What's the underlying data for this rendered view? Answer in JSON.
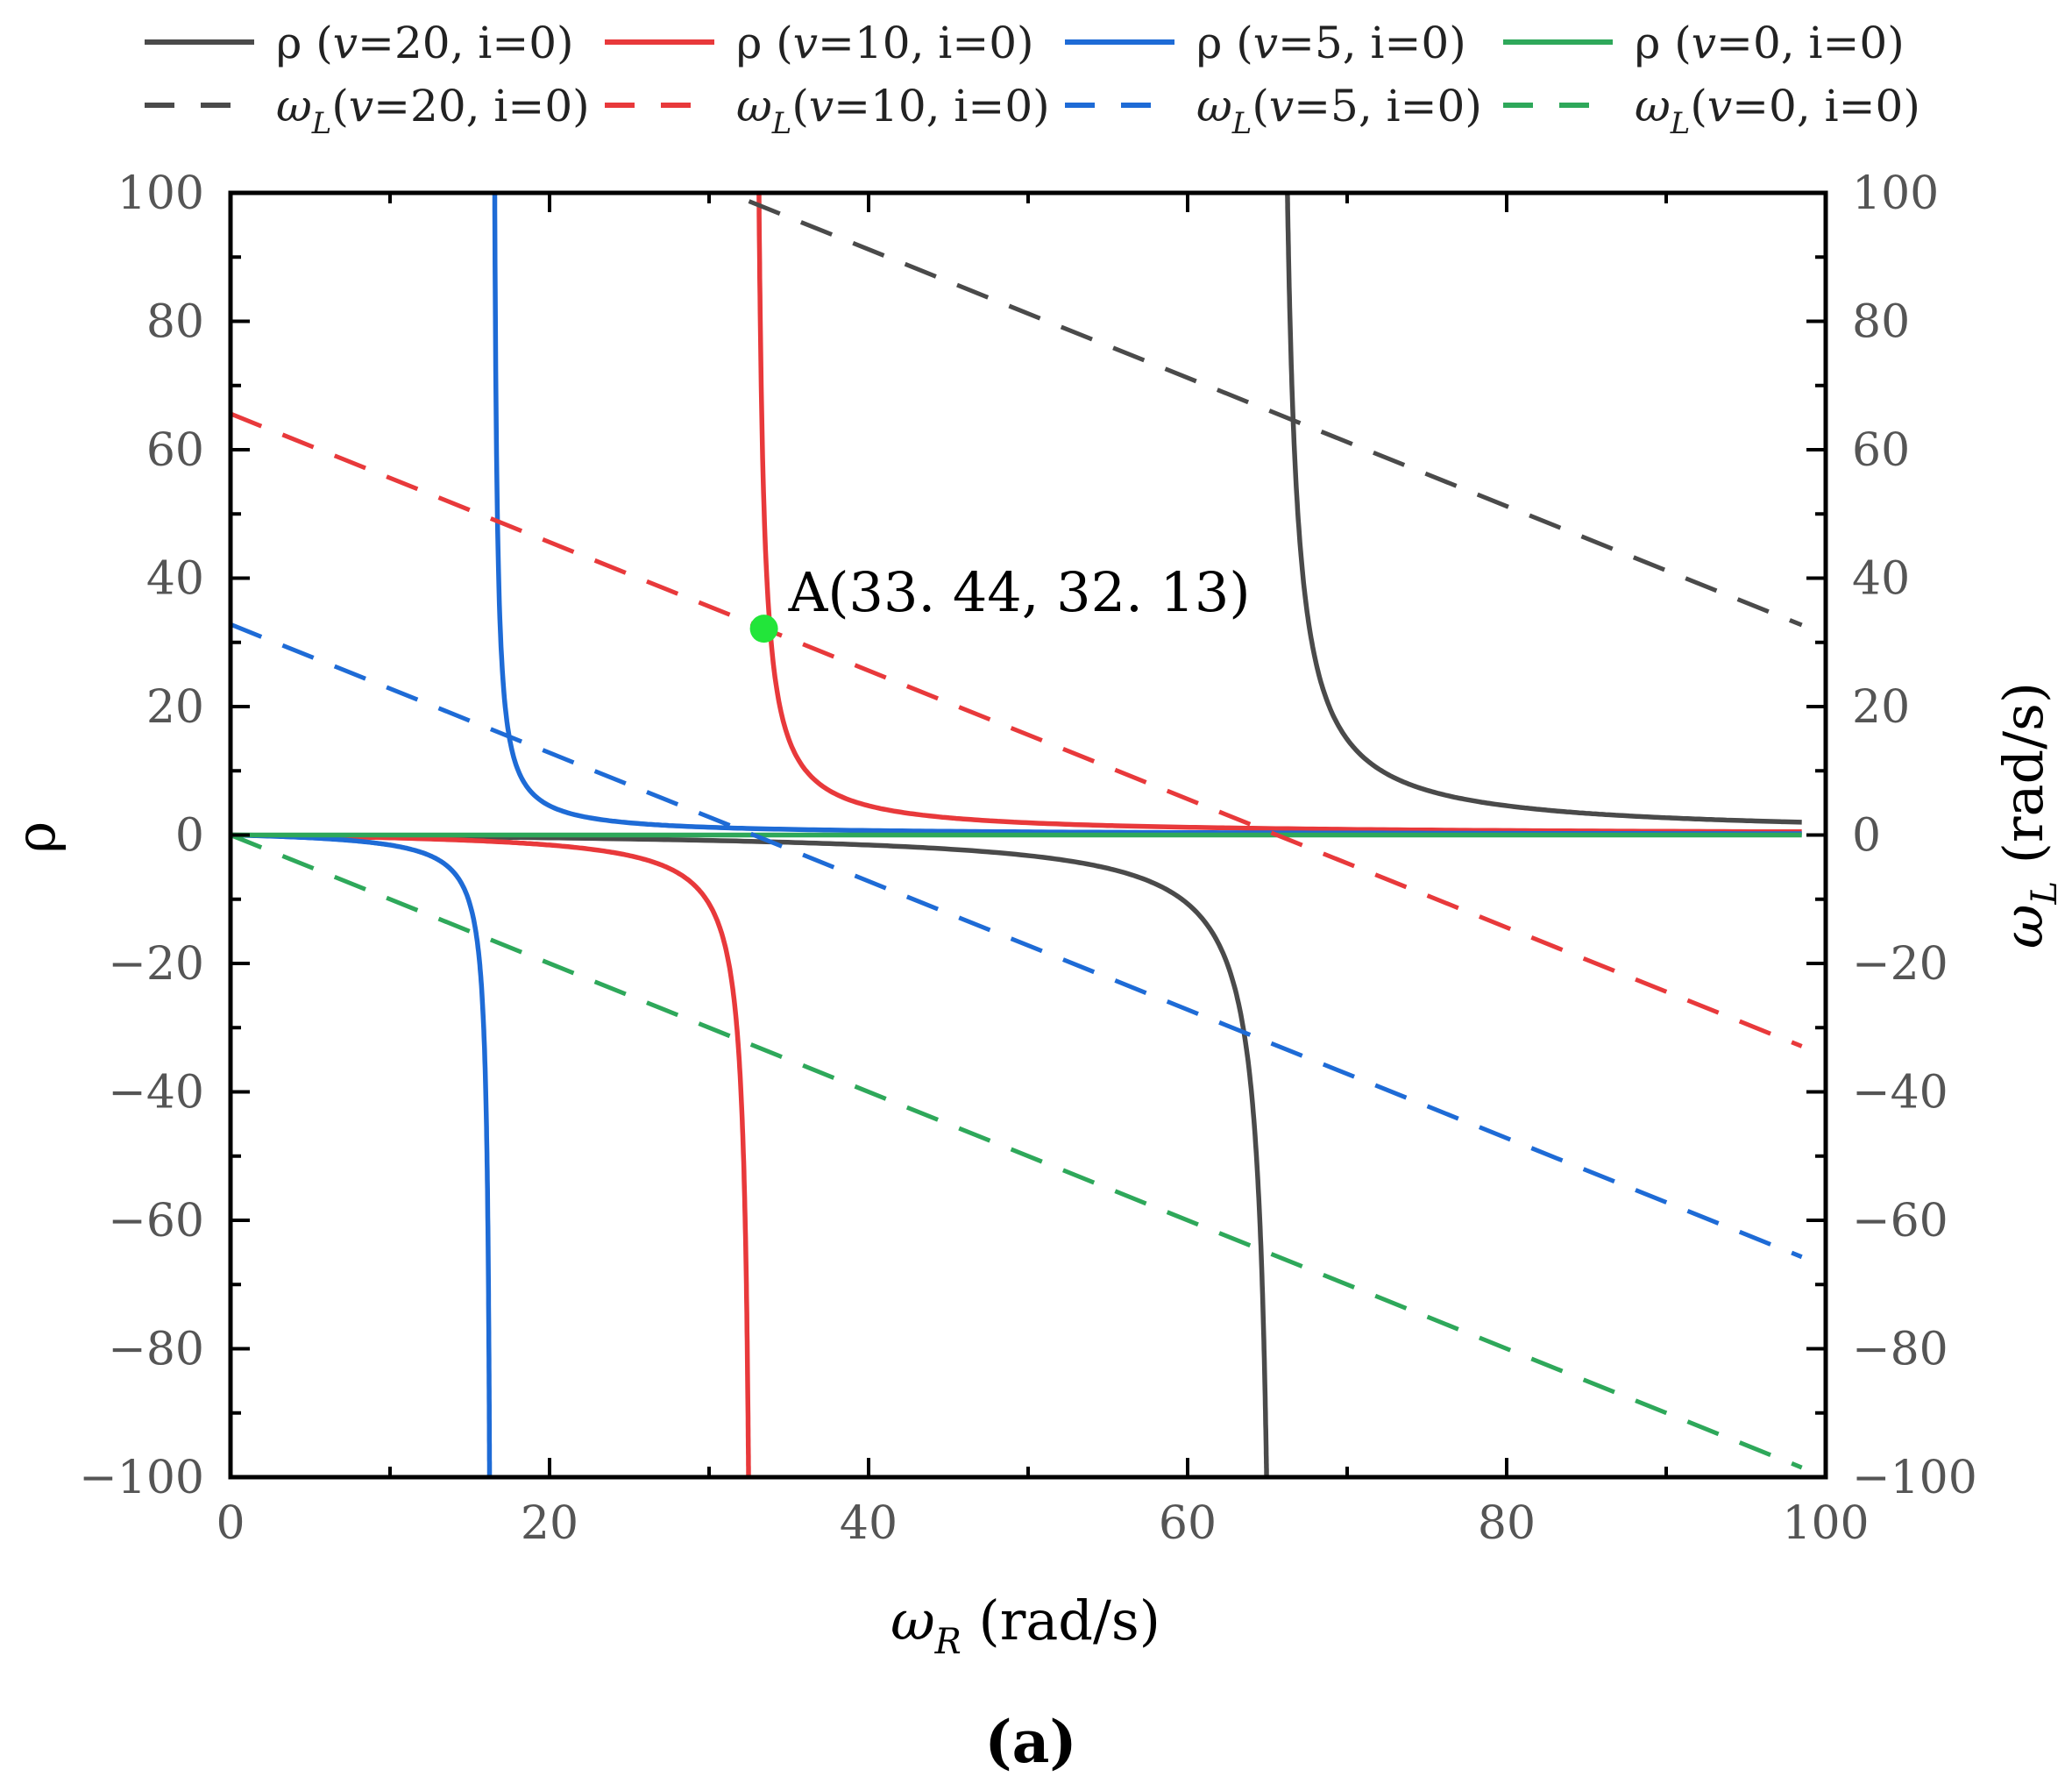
{
  "chart_data": {
    "type": "line",
    "caption": "(a)",
    "xlabel": {
      "symbol": "ω",
      "sub": "R",
      "unit": "(rad/s)"
    },
    "ylabel_left": "ρ",
    "ylabel_right": {
      "symbol": "ω",
      "sub": "L",
      "unit": "(rad/s)"
    },
    "xlim": [
      0,
      100
    ],
    "ylim_left": [
      -100,
      100
    ],
    "ylim_right": [
      -100,
      100
    ],
    "x_ticks": [
      0,
      20,
      40,
      60,
      80,
      100
    ],
    "y_ticks": [
      -100,
      -80,
      -60,
      -40,
      -20,
      0,
      20,
      40,
      60,
      80,
      100
    ],
    "x_tick_labels": [
      "0",
      "20",
      "40",
      "60",
      "80",
      "100"
    ],
    "y_tick_labels": [
      "−100",
      "−80",
      "−60",
      "−40",
      "−20",
      "0",
      "20",
      "40",
      "60",
      "80",
      "100"
    ],
    "legend": [
      {
        "pre": "ρ (",
        "v": "v",
        "post": "=20, i=0)",
        "color": "#4a4a4a",
        "dash": false
      },
      {
        "pre": "ρ (",
        "v": "v",
        "post": "=10, i=0)",
        "color": "#e8393b",
        "dash": false
      },
      {
        "pre": "ρ (",
        "v": "v",
        "post": "=5, i=0)",
        "color": "#1e6bd6",
        "dash": false
      },
      {
        "pre": "ρ (",
        "v": "v",
        "post": "=0, i=0)",
        "color": "#2ea85a",
        "dash": false
      },
      {
        "pre": "ω",
        "sub": "L",
        "mid": "(",
        "v": "v",
        "post": "=20, i=0)",
        "color": "#4a4a4a",
        "dash": true
      },
      {
        "pre": "ω",
        "sub": "L",
        "mid": "(",
        "v": "v",
        "post": "=10, i=0)",
        "color": "#e8393b",
        "dash": true
      },
      {
        "pre": "ω",
        "sub": "L",
        "mid": "(",
        "v": "v",
        "post": "=5, i=0)",
        "color": "#1e6bd6",
        "dash": true
      },
      {
        "pre": "ω",
        "sub": "L",
        "mid": "(",
        "v": "v",
        "post": "=0, i=0)",
        "color": "#2ea85a",
        "dash": true
      }
    ],
    "series": [
      {
        "name": "ρ (v=20, i=0)",
        "axis": "left",
        "kind": "rho",
        "a": 65.6,
        "color": "#4a4a4a",
        "dash": false
      },
      {
        "name": "ρ (v=10, i=0)",
        "axis": "left",
        "kind": "rho",
        "a": 32.8,
        "color": "#e8393b",
        "dash": false
      },
      {
        "name": "ρ (v=5, i=0)",
        "axis": "left",
        "kind": "rho",
        "a": 16.4,
        "color": "#1e6bd6",
        "dash": false
      },
      {
        "name": "ρ (v=0, i=0)",
        "axis": "left",
        "kind": "rho",
        "a": 0,
        "color": "#2ea85a",
        "dash": false
      },
      {
        "name": "ωL (v=20, i=0)",
        "axis": "right",
        "kind": "line",
        "intercept": 131.2,
        "slope": -1,
        "x": [
          32.5,
          98.5
        ],
        "color": "#4a4a4a",
        "dash": true
      },
      {
        "name": "ωL (v=10, i=0)",
        "axis": "right",
        "kind": "line",
        "intercept": 65.6,
        "slope": -1,
        "x": [
          0,
          98.5
        ],
        "color": "#e8393b",
        "dash": true
      },
      {
        "name": "ωL (v=5, i=0)",
        "axis": "right",
        "kind": "line",
        "intercept": 32.8,
        "slope": -1,
        "x": [
          0,
          98.5
        ],
        "color": "#1e6bd6",
        "dash": true
      },
      {
        "name": "ωL (v=0, i=0)",
        "axis": "right",
        "kind": "line",
        "intercept": 0,
        "slope": -1,
        "x": [
          0,
          98.5
        ],
        "color": "#2ea85a",
        "dash": true
      }
    ],
    "annotation": {
      "text": "A(33. 44,  32. 13)",
      "x": 33.44,
      "y": 32.13,
      "color": "#22e53a"
    }
  }
}
